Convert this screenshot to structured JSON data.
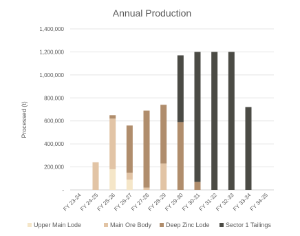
{
  "chart_data": {
    "type": "bar",
    "stacked": true,
    "title": "Annual Production",
    "ylabel": "Processed (t)",
    "xlabel": "",
    "ylim": [
      0,
      1400000
    ],
    "yticks": [
      {
        "value": 0,
        "label": "-"
      },
      {
        "value": 200000,
        "label": "200,000"
      },
      {
        "value": 400000,
        "label": "400,000"
      },
      {
        "value": 600000,
        "label": "600,000"
      },
      {
        "value": 800000,
        "label": "800,000"
      },
      {
        "value": 1000000,
        "label": "1,000,000"
      },
      {
        "value": 1200000,
        "label": "1,200,000"
      },
      {
        "value": 1400000,
        "label": "1,400,000"
      }
    ],
    "categories": [
      "FY 23-24",
      "FY 24-25",
      "FY 25-26",
      "FY 26-27",
      "FY 27-28",
      "FY 28-29",
      "FY 29-30",
      "FY 30-31",
      "FY 31-32",
      "FY 32-33",
      "FY 33-34",
      "FY 34-35"
    ],
    "series": [
      {
        "name": "Upper Main Lode",
        "color": "#f5e6c8",
        "values": [
          0,
          0,
          180000,
          90000,
          0,
          0,
          0,
          0,
          0,
          0,
          0,
          0
        ]
      },
      {
        "name": "Main Ore Body",
        "color": "#e2c4a5",
        "values": [
          0,
          240000,
          440000,
          60000,
          20000,
          230000,
          0,
          0,
          0,
          0,
          0,
          0
        ]
      },
      {
        "name": "Deep Zinc Lode",
        "color": "#b08d6c",
        "values": [
          0,
          0,
          30000,
          410000,
          670000,
          510000,
          590000,
          70000,
          0,
          0,
          0,
          0
        ]
      },
      {
        "name": "Sector 1 Tailings",
        "color": "#4b4b45",
        "values": [
          0,
          0,
          0,
          0,
          0,
          0,
          580000,
          1130000,
          1200000,
          1200000,
          720000,
          0
        ]
      }
    ],
    "grid": true,
    "legend_position": "bottom"
  }
}
